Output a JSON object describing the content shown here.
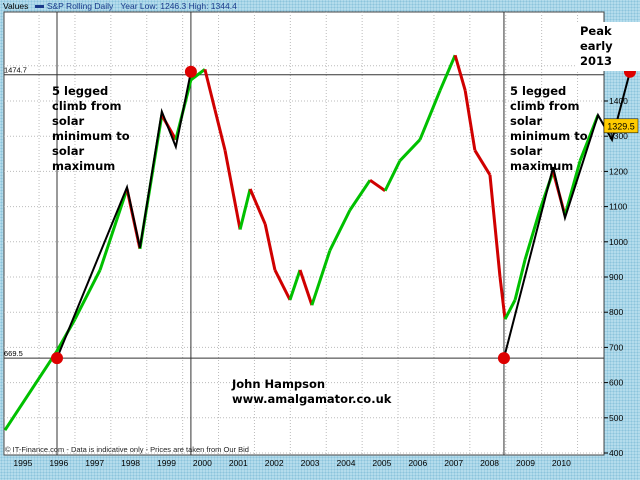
{
  "header": {
    "values_label": "Values",
    "series_label": "S&P Rolling Daily",
    "year_range_text": "Year Low: 1246.3 High: 1344.4"
  },
  "footer": "© IT-Finance.com - Data is indicative only - Prices are taken from Our Bid",
  "annotations": {
    "left": "5 legged\nclimb from\nsolar\nminimum to\nsolar\nmaximum",
    "right": "5 legged\nclimb from\nsolar\nminimum to\nsolar\nmaximum",
    "peak": "Peak early\n2013",
    "author": "John Hampson\nwww.amalgamator.co.uk"
  },
  "chart_data": {
    "type": "line",
    "title": "",
    "series": [
      {
        "name": "S&P Rolling Daily",
        "color_up": "#00c000",
        "color_down": "#d00000",
        "points": [
          [
            1994.55,
            465
          ],
          [
            1996.0,
            690
          ],
          [
            1996.5,
            780
          ],
          [
            1997.2,
            920
          ],
          [
            1997.95,
            1150
          ],
          [
            1998.31,
            980
          ],
          [
            1998.92,
            1360
          ],
          [
            1999.31,
            1290
          ],
          [
            1999.73,
            1460
          ],
          [
            2000.12,
            1490
          ],
          [
            2000.4,
            1375
          ],
          [
            2000.68,
            1260
          ],
          [
            2001.1,
            1035
          ],
          [
            2001.38,
            1150
          ],
          [
            2001.8,
            1050
          ],
          [
            2002.07,
            920
          ],
          [
            2002.49,
            835
          ],
          [
            2002.77,
            920
          ],
          [
            2003.1,
            820
          ],
          [
            2003.6,
            975
          ],
          [
            2004.16,
            1090
          ],
          [
            2004.72,
            1175
          ],
          [
            2005.14,
            1145
          ],
          [
            2005.55,
            1230
          ],
          [
            2006.11,
            1290
          ],
          [
            2006.67,
            1430
          ],
          [
            2007.09,
            1530
          ],
          [
            2007.37,
            1430
          ],
          [
            2007.64,
            1260
          ],
          [
            2008.06,
            1190
          ],
          [
            2008.34,
            900
          ],
          [
            2008.48,
            780
          ],
          [
            2008.76,
            835
          ],
          [
            2009.04,
            950
          ],
          [
            2009.45,
            1090
          ],
          [
            2009.82,
            1200
          ],
          [
            2010.15,
            1075
          ],
          [
            2010.57,
            1230
          ],
          [
            2011.07,
            1360
          ]
        ]
      }
    ],
    "elliott_lines": [
      [
        [
          1996.0,
          669.5
        ],
        [
          1997.95,
          1155
        ],
        [
          1998.31,
          983
        ],
        [
          1998.92,
          1370
        ],
        [
          1999.31,
          1270
        ],
        [
          1999.73,
          1483
        ]
      ],
      [
        [
          2008.45,
          669.5
        ],
        [
          2009.82,
          1212
        ],
        [
          2010.15,
          1068
        ],
        [
          2011.07,
          1360
        ],
        [
          2011.46,
          1290
        ],
        [
          2011.96,
          1483
        ]
      ]
    ],
    "red_dots": [
      [
        1996.0,
        669.5
      ],
      [
        1999.73,
        1483
      ],
      [
        2008.45,
        669.5
      ],
      [
        2011.96,
        1483
      ]
    ],
    "horizontal_lines": [
      {
        "value": 1474.7,
        "label": "1474.7"
      },
      {
        "value": 669.5,
        "label": "669.5"
      }
    ],
    "vertical_lines": [
      1996.0,
      1999.73,
      2008.45
    ],
    "last_value_label": "1329.5",
    "last_value": 1329.5,
    "x_ticks": [
      "1995",
      "1996",
      "1997",
      "1998",
      "1999",
      "2000",
      "2001",
      "2002",
      "2003",
      "2004",
      "2005",
      "2006",
      "2007",
      "2008",
      "2009",
      "2010"
    ],
    "y_ticks": [
      400,
      500,
      600,
      700,
      800,
      900,
      1000,
      1100,
      1200,
      1300,
      1400,
      1500
    ],
    "ylim": [
      400,
      1600
    ],
    "xlim": [
      1994.45,
      2011.2
    ],
    "grid": true,
    "colors": {
      "background": "#b4dcec",
      "plot": "#ffffff",
      "marker": "#dd0000",
      "label_box": "#ffcc00"
    }
  }
}
